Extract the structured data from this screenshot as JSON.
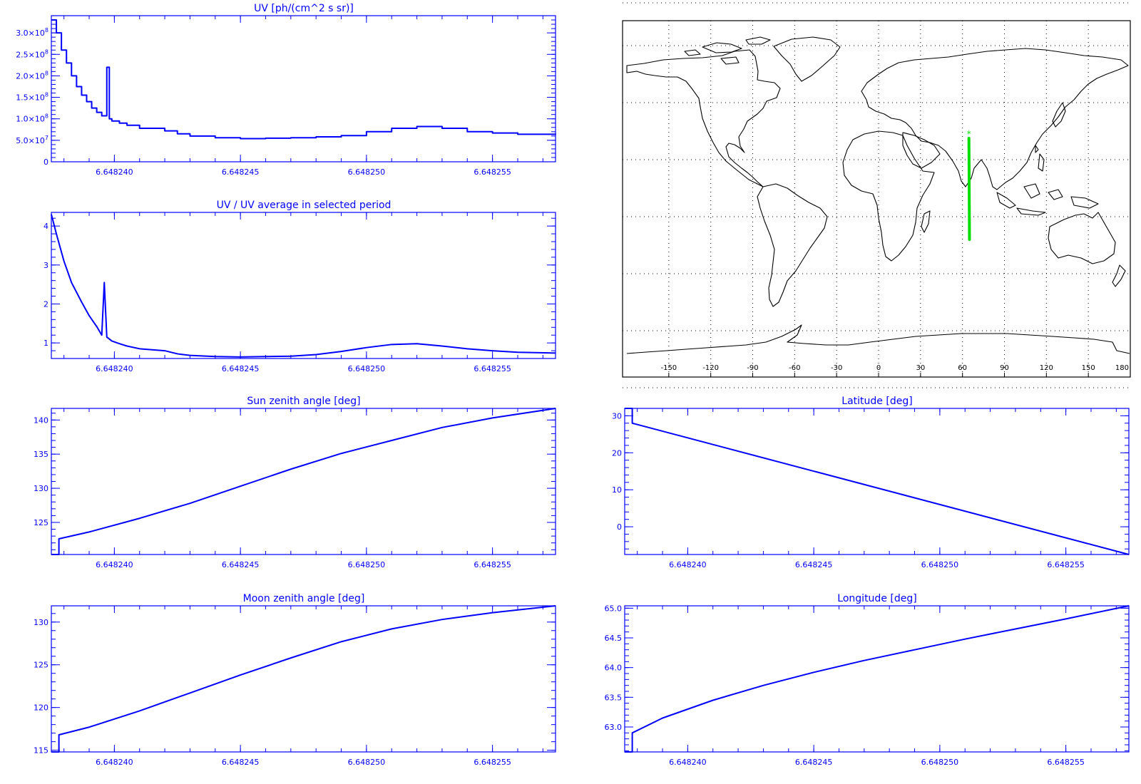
{
  "figure": {
    "title": "",
    "colors": {
      "line": "#0000ff",
      "axes": "#0000ff",
      "text": "#0000ff",
      "track": "#00dd00",
      "map": "#000000"
    }
  },
  "chart_data": [
    {
      "id": "uv",
      "type": "line",
      "step": true,
      "title": "UV [ph/(cm^2 s sr)]",
      "xlabel": "",
      "ylabel": "",
      "xlim": [
        6.6482375,
        6.6482575
      ],
      "ylim": [
        0,
        340000000.0
      ],
      "x_ticks": [
        6.64824,
        6.648245,
        6.64825,
        6.648255
      ],
      "x_tick_labels": [
        "6.648240",
        "6.648245",
        "6.648250",
        "6.648255"
      ],
      "y_ticks": [
        0,
        50000000.0,
        100000000.0,
        150000000.0,
        200000000.0,
        250000000.0,
        300000000.0
      ],
      "y_tick_labels": [
        {
          "mant": "0",
          "exp": ""
        },
        {
          "mant": "5.0×10",
          "exp": "7"
        },
        {
          "mant": "1.0×10",
          "exp": "8"
        },
        {
          "mant": "1.5×10",
          "exp": "8"
        },
        {
          "mant": "2.0×10",
          "exp": "8"
        },
        {
          "mant": "2.5×10",
          "exp": "8"
        },
        {
          "mant": "3.0×10",
          "exp": "8"
        }
      ],
      "series": [
        {
          "x": [
            6.6482375,
            6.6482377,
            6.6482379,
            6.6482381,
            6.6482383,
            6.6482385,
            6.6482387,
            6.6482389,
            6.6482391,
            6.6482393,
            6.6482395,
            6.6482397,
            6.6482398,
            6.6482399,
            6.6482402,
            6.6482405,
            6.648241,
            6.648242,
            6.6482425,
            6.648243,
            6.648244,
            6.648245,
            6.648246,
            6.648247,
            6.648248,
            6.648249,
            6.64825,
            6.648251,
            6.648252,
            6.648253,
            6.648254,
            6.648255,
            6.648256,
            6.6482575
          ],
          "y": [
            330000000.0,
            300000000.0,
            260000000.0,
            230000000.0,
            200000000.0,
            175000000.0,
            155000000.0,
            140000000.0,
            125000000.0,
            115000000.0,
            107000000.0,
            220000000.0,
            100000000.0,
            95000000.0,
            90000000.0,
            85000000.0,
            78000000.0,
            72000000.0,
            65000000.0,
            60000000.0,
            56000000.0,
            54000000.0,
            55000000.0,
            56000000.0,
            58000000.0,
            61000000.0,
            70000000.0,
            78000000.0,
            82000000.0,
            78000000.0,
            70000000.0,
            67000000.0,
            64000000.0,
            63000000.0
          ]
        }
      ]
    },
    {
      "id": "uvratio",
      "type": "line",
      "title": "UV / UV average in selected period",
      "xlabel": "",
      "ylabel": "",
      "xlim": [
        6.6482375,
        6.6482575
      ],
      "ylim": [
        0.6,
        4.35
      ],
      "x_ticks": [
        6.64824,
        6.648245,
        6.64825,
        6.648255
      ],
      "x_tick_labels": [
        "6.648240",
        "6.648245",
        "6.648250",
        "6.648255"
      ],
      "y_ticks": [
        1,
        2,
        3,
        4
      ],
      "y_tick_labels": [
        "1",
        "2",
        "3",
        "4"
      ],
      "series": [
        {
          "x": [
            6.6482375,
            6.6482377,
            6.648238,
            6.6482383,
            6.6482387,
            6.648239,
            6.6482393,
            6.6482395,
            6.6482396,
            6.6482397,
            6.6482399,
            6.6482402,
            6.6482405,
            6.648241,
            6.648242,
            6.6482425,
            6.648243,
            6.648244,
            6.648245,
            6.648246,
            6.648247,
            6.648248,
            6.648249,
            6.64825,
            6.648251,
            6.648252,
            6.648253,
            6.648254,
            6.648255,
            6.648256,
            6.6482575
          ],
          "y": [
            4.3,
            3.8,
            3.1,
            2.55,
            2.05,
            1.7,
            1.42,
            1.2,
            2.55,
            1.15,
            1.05,
            0.98,
            0.92,
            0.85,
            0.8,
            0.72,
            0.68,
            0.65,
            0.64,
            0.65,
            0.66,
            0.7,
            0.78,
            0.88,
            0.96,
            0.98,
            0.92,
            0.85,
            0.8,
            0.76,
            0.74
          ]
        }
      ]
    },
    {
      "id": "sza",
      "type": "line",
      "title": "Sun zenith angle [deg]",
      "xlabel": "",
      "ylabel": "",
      "xlim": [
        6.6482375,
        6.6482575
      ],
      "ylim": [
        120.3,
        141.7
      ],
      "x_ticks": [
        6.64824,
        6.648245,
        6.64825,
        6.648255
      ],
      "x_tick_labels": [
        "6.648240",
        "6.648245",
        "6.648250",
        "6.648255"
      ],
      "y_ticks": [
        125,
        130,
        135,
        140
      ],
      "y_tick_labels": [
        "125",
        "130",
        "135",
        "140"
      ],
      "series": [
        {
          "x": [
            6.6482375,
            6.6482378,
            6.6482378,
            6.648239,
            6.648241,
            6.648243,
            6.648245,
            6.648247,
            6.648249,
            6.648251,
            6.648253,
            6.648255,
            6.6482575
          ],
          "y": [
            120.3,
            120.3,
            122.6,
            123.6,
            125.6,
            127.8,
            130.3,
            132.8,
            135.1,
            137.0,
            138.9,
            140.3,
            141.7
          ]
        }
      ]
    },
    {
      "id": "lat",
      "type": "line",
      "title": "Latitude [deg]",
      "xlabel": "",
      "ylabel": "",
      "xlim": [
        6.6482375,
        6.6482575
      ],
      "ylim": [
        -7.5,
        32
      ],
      "x_ticks": [
        6.64824,
        6.648245,
        6.64825,
        6.648255
      ],
      "x_tick_labels": [
        "6.648240",
        "6.648245",
        "6.648250",
        "6.648255"
      ],
      "y_ticks": [
        0,
        10,
        20,
        30
      ],
      "y_tick_labels": [
        "0",
        "10",
        "20",
        "30"
      ],
      "series": [
        {
          "x": [
            6.6482375,
            6.6482378,
            6.6482378,
            6.6482575
          ],
          "y": [
            32,
            32,
            28,
            -7.5
          ]
        }
      ]
    },
    {
      "id": "mza",
      "type": "line",
      "title": "Moon zenith angle [deg]",
      "xlabel": "",
      "ylabel": "",
      "xlim": [
        6.6482375,
        6.6482575
      ],
      "ylim": [
        114.8,
        131.9
      ],
      "x_ticks": [
        6.64824,
        6.648245,
        6.64825,
        6.648255
      ],
      "x_tick_labels": [
        "6.648240",
        "6.648245",
        "6.648250",
        "6.648255"
      ],
      "y_ticks": [
        115,
        120,
        125,
        130
      ],
      "y_tick_labels": [
        "115",
        "120",
        "125",
        "130"
      ],
      "series": [
        {
          "x": [
            6.6482375,
            6.6482378,
            6.6482378,
            6.648239,
            6.648241,
            6.648243,
            6.648245,
            6.648247,
            6.648249,
            6.648251,
            6.648253,
            6.648255,
            6.6482575
          ],
          "y": [
            114.8,
            114.8,
            116.8,
            117.7,
            119.6,
            121.7,
            123.8,
            125.8,
            127.7,
            129.2,
            130.3,
            131.1,
            131.9
          ]
        }
      ]
    },
    {
      "id": "lon",
      "type": "line",
      "title": "Longitude [deg]",
      "xlabel": "",
      "ylabel": "",
      "xlim": [
        6.6482375,
        6.6482575
      ],
      "ylim": [
        62.58,
        65.04
      ],
      "x_ticks": [
        6.64824,
        6.648245,
        6.64825,
        6.648255
      ],
      "x_tick_labels": [
        "6.648240",
        "6.648245",
        "6.648250",
        "6.648255"
      ],
      "y_ticks": [
        63.0,
        63.5,
        64.0,
        64.5,
        65.0
      ],
      "y_tick_labels": [
        "63.0",
        "63.5",
        "64.0",
        "64.5",
        "65.0"
      ],
      "series": [
        {
          "x": [
            6.6482375,
            6.6482378,
            6.6482378,
            6.648239,
            6.648241,
            6.648243,
            6.648245,
            6.648247,
            6.648249,
            6.648251,
            6.648253,
            6.648255,
            6.6482575
          ],
          "y": [
            62.58,
            62.58,
            62.9,
            63.15,
            63.45,
            63.7,
            63.92,
            64.12,
            64.3,
            64.48,
            64.65,
            64.82,
            65.04
          ]
        }
      ]
    }
  ],
  "map": {
    "x_ticks": [
      -150,
      -120,
      -90,
      -60,
      -30,
      0,
      30,
      60,
      90,
      120,
      150,
      180
    ],
    "x_tick_labels": [
      "-150",
      "-120",
      "-90",
      "-60",
      "-30",
      "0",
      "30",
      "60",
      "90",
      "120",
      "150",
      "180"
    ],
    "grid_lats": [
      75,
      60,
      40,
      20,
      0,
      -20,
      -40,
      -60
    ],
    "marker": "*",
    "track": {
      "start": [
        64.6,
        27.5
      ],
      "end": [
        65.0,
        -8.0
      ]
    }
  }
}
